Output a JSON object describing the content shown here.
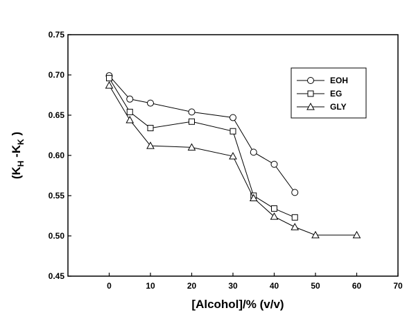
{
  "chart_data": {
    "type": "line",
    "xlabel": "[Alcohol]/% (v/v)",
    "ylabel": {
      "prefix": "(K",
      "sub1": "H",
      "mid": " -K",
      "sub2": "K",
      "suffix": " )"
    },
    "xlim": [
      -10,
      70
    ],
    "ylim": [
      0.45,
      0.75
    ],
    "xticks": [
      0,
      10,
      20,
      30,
      40,
      50,
      60,
      70
    ],
    "yticks": [
      0.45,
      0.5,
      0.55,
      0.6,
      0.65,
      0.7,
      0.75
    ],
    "ytick_labels": [
      "0.45",
      "0.50",
      "0.55",
      "0.60",
      "0.65",
      "0.70",
      "0.75"
    ],
    "grid": false,
    "legend_position": "top-right",
    "series": [
      {
        "name": "EOH",
        "marker": "circle",
        "x": [
          0,
          5,
          10,
          20,
          30,
          35,
          40,
          45
        ],
        "y": [
          0.699,
          0.67,
          0.665,
          0.654,
          0.647,
          0.604,
          0.589,
          0.554
        ]
      },
      {
        "name": "EG",
        "marker": "square",
        "x": [
          0,
          5,
          10,
          20,
          30,
          35,
          40,
          45
        ],
        "y": [
          0.696,
          0.654,
          0.634,
          0.642,
          0.63,
          0.55,
          0.534,
          0.523
        ]
      },
      {
        "name": "GLY",
        "marker": "triangle",
        "x": [
          0,
          5,
          10,
          20,
          30,
          35,
          40,
          45,
          50,
          60
        ],
        "y": [
          0.687,
          0.644,
          0.612,
          0.61,
          0.599,
          0.547,
          0.524,
          0.511,
          0.501,
          0.501
        ]
      }
    ]
  }
}
